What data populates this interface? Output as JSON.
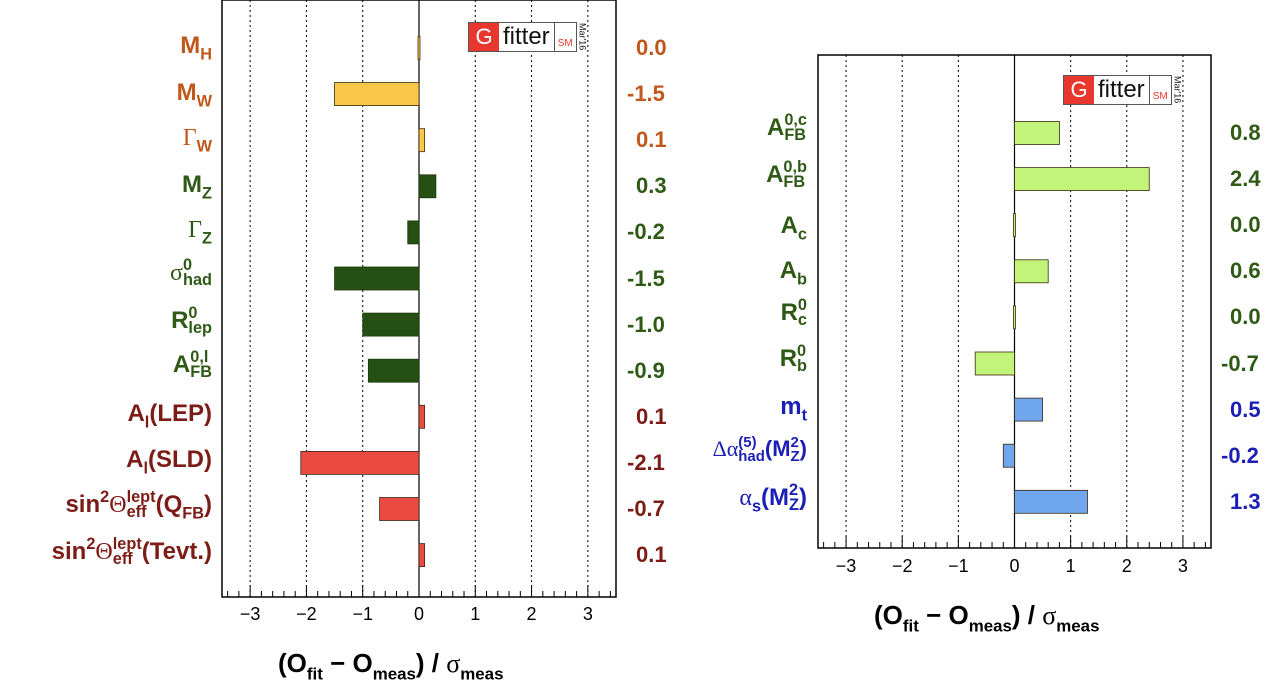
{
  "logo": {
    "g": "G",
    "fitter": "fitter",
    "sm": "SM",
    "date": "Mar'16"
  },
  "colors": {
    "orange_text": "#c0571c",
    "orange_bar": "#f8c74a",
    "green_text": "#2f5a16",
    "green_bar": "#264f14",
    "red_text": "#7b1c16",
    "red_bar": "#ea4a41",
    "lightgreen_bar": "#c3f47a",
    "blue_text": "#1b1fb5",
    "blue_bar": "#6fa6ee"
  },
  "chart_data": [
    {
      "type": "bar",
      "orientation": "horizontal",
      "xlabel": "(O_fit − O_meas) / σ_meas",
      "xlim": [
        -3.5,
        3.5
      ],
      "xticks": [
        "−3",
        "−2",
        "−1",
        "0",
        "1",
        "2",
        "3"
      ],
      "grid": "vertical dotted",
      "categories": [
        "M_H",
        "M_W",
        "Γ_W",
        "M_Z",
        "Γ_Z",
        "σ0_had",
        "R0_lep",
        "A0,l_FB",
        "A_l(LEP)",
        "A_l(SLD)",
        "sin²Θlept_eff(Q_FB)",
        "sin²Θlept_eff(Tevt.)"
      ],
      "values": [
        0.0,
        -1.5,
        0.1,
        0.3,
        -0.2,
        -1.5,
        -1.0,
        -0.9,
        0.1,
        -2.1,
        -0.7,
        0.1
      ],
      "labels": [
        "0.0",
        "-1.5",
        "0.1",
        "0.3",
        "-0.2",
        "-1.5",
        "-1.0",
        "-0.9",
        "0.1",
        "-2.1",
        "-0.7",
        "0.1"
      ],
      "groups": [
        "orange",
        "orange",
        "orange",
        "green",
        "green",
        "green",
        "green",
        "green",
        "red",
        "red",
        "red",
        "red"
      ]
    },
    {
      "type": "bar",
      "orientation": "horizontal",
      "xlabel": "(O_fit − O_meas) / σ_meas",
      "xlim": [
        -3.5,
        3.5
      ],
      "xticks": [
        "−3",
        "−2",
        "−1",
        "0",
        "1",
        "2",
        "3"
      ],
      "grid": "vertical dotted",
      "categories": [
        "A0,c_FB",
        "A0,b_FB",
        "A_c",
        "A_b",
        "R0_c",
        "R0_b",
        "m_t",
        "Δα(5)_had(M²_Z)",
        "α_s(M²_Z)"
      ],
      "values": [
        0.8,
        2.4,
        0.0,
        0.6,
        0.0,
        -0.7,
        0.5,
        -0.2,
        1.3
      ],
      "labels": [
        "0.8",
        "2.4",
        "0.0",
        "0.6",
        "0.0",
        "-0.7",
        "0.5",
        "-0.2",
        "1.3"
      ],
      "groups": [
        "lightgreen",
        "lightgreen",
        "lightgreen",
        "lightgreen",
        "lightgreen",
        "lightgreen",
        "blue",
        "blue",
        "blue"
      ]
    }
  ]
}
